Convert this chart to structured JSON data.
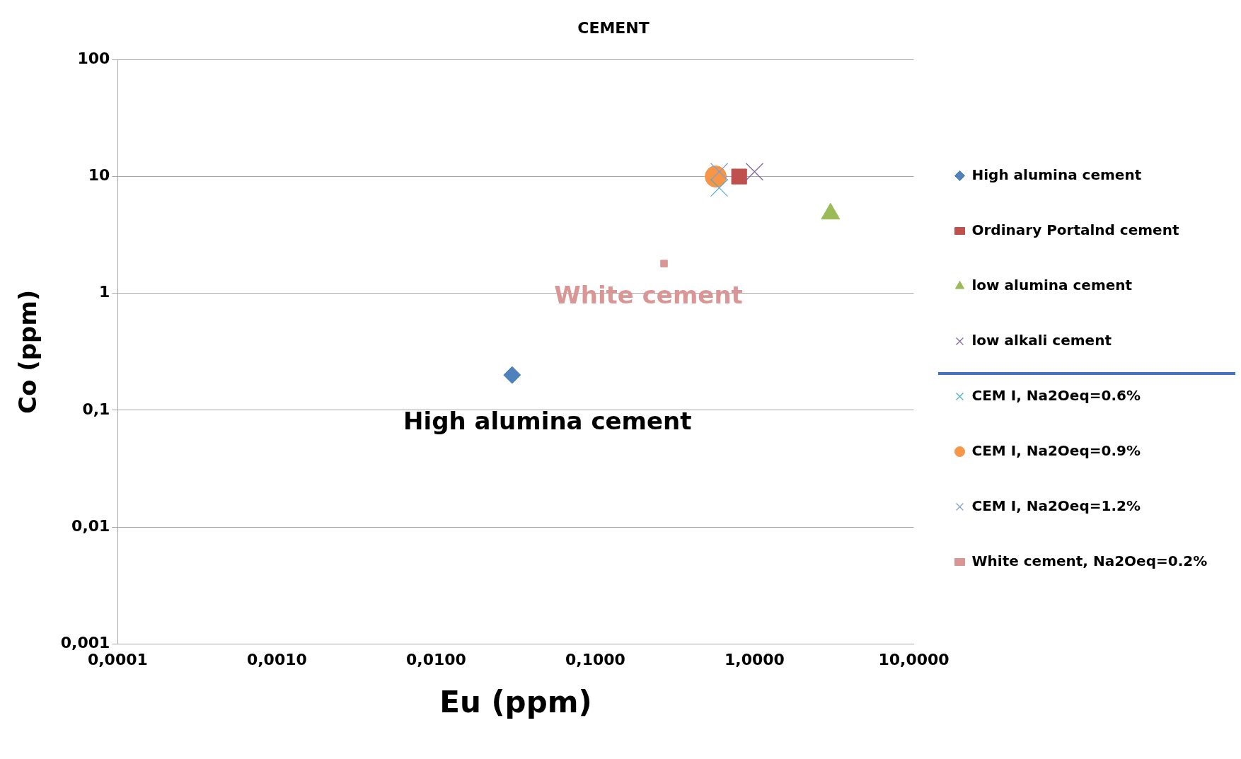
{
  "chart_data": {
    "type": "scatter",
    "title": "CEMENT",
    "xlabel": "Eu (ppm)",
    "ylabel": "Co (ppm)",
    "log": "xy",
    "grid": "y",
    "legend": "right",
    "xlim": [
      0.0001,
      10
    ],
    "xticks": [
      {
        "value": 0.0001,
        "label": "0,0001"
      },
      {
        "value": 0.001,
        "label": "0,0010"
      },
      {
        "value": 0.01,
        "label": "0,0100"
      },
      {
        "value": 0.1,
        "label": "0,1000"
      },
      {
        "value": 1,
        "label": "1,0000"
      },
      {
        "value": 10,
        "label": "10,0000"
      }
    ],
    "ylim": [
      0.001,
      100
    ],
    "yticks": [
      {
        "value": 0.001,
        "label": "0,001"
      },
      {
        "value": 0.01,
        "label": "0,01"
      },
      {
        "value": 0.1,
        "label": "0,1"
      },
      1,
      10,
      100
    ],
    "series": [
      {
        "name": "High alumina cement",
        "color": "#4f81bd",
        "marker": "diamond",
        "x": [
          0.03
        ],
        "values": [
          0.2
        ]
      },
      {
        "name": "Ordinary Portalnd cement",
        "color": "#c0504d",
        "marker": "square",
        "x": [
          0.8
        ],
        "values": [
          10
        ]
      },
      {
        "name": "low alumina cement",
        "color": "#9bbb59",
        "marker": "triangle",
        "x": [
          3
        ],
        "values": [
          4.8
        ]
      },
      {
        "name": "low alkali cement",
        "color": "#8064a2",
        "marker": "cross",
        "x": [
          1
        ],
        "values": [
          11
        ]
      },
      {
        "name": "CEM I, Na2Oeq=0.6%",
        "color": "#4bacc6",
        "marker": "cross",
        "x": [
          0.6
        ],
        "values": [
          8
        ]
      },
      {
        "name": "CEM I, Na2Oeq=0.9%",
        "color": "#f79646",
        "marker": "circle",
        "x": [
          0.57
        ],
        "values": [
          10
        ]
      },
      {
        "name": "CEM I, Na2Oeq=1.2%",
        "color": "#7f9fd0",
        "marker": "cross",
        "x": [
          0.6
        ],
        "values": [
          11
        ]
      },
      {
        "name": "White cement, Na2Oeq=0.2%",
        "color": "#d99694",
        "marker": "square",
        "x": [
          0.27
        ],
        "values": [
          1.8
        ]
      }
    ],
    "annotations": [
      {
        "text": "High alumina cement",
        "x": 0.03,
        "y": 0.2
      },
      {
        "text": "White cement",
        "x": 0.27,
        "y": 1.8
      }
    ]
  }
}
